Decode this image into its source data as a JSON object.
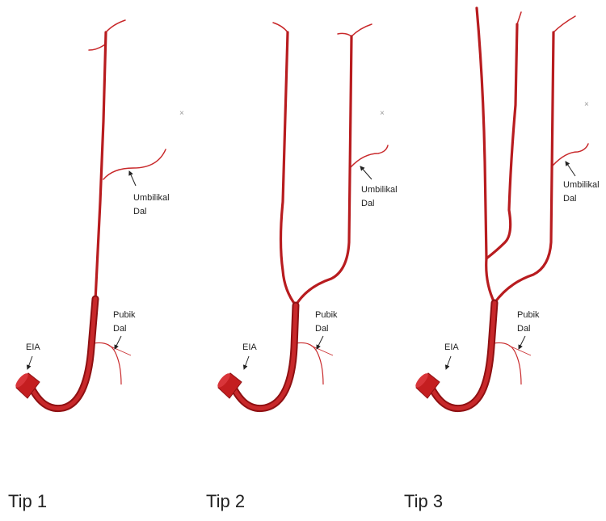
{
  "panels": [
    {
      "title": "Tip 1",
      "marker": "×",
      "umbilical": [
        "Umbilikal",
        "Dal"
      ],
      "pubic": [
        "Pubik",
        "Dal"
      ],
      "eia": "EIA"
    },
    {
      "title": "Tip 2",
      "marker": "×",
      "umbilical": [
        "Umbilikal",
        "Dal"
      ],
      "pubic": [
        "Pubik",
        "Dal"
      ],
      "eia": "EIA"
    },
    {
      "title": "Tip 3",
      "marker": "×",
      "umbilical": [
        "Umbilikal",
        "Dal"
      ],
      "pubic": [
        "Pubik",
        "Dal"
      ],
      "eia": "EIA"
    }
  ]
}
